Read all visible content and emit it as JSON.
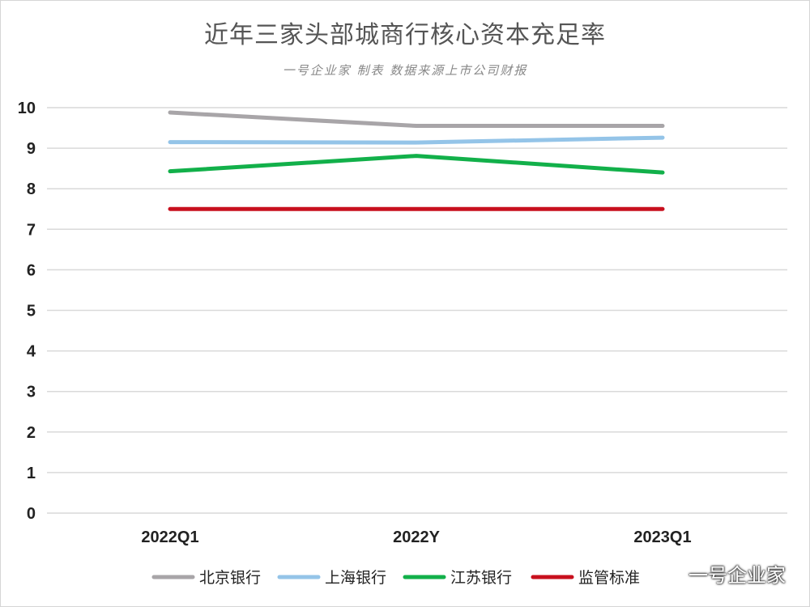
{
  "chart_data": {
    "type": "line",
    "title": "近年三家头部城商行核心资本充足率",
    "subtitle": "一号企业家 制表 数据来源上市公司财报",
    "categories": [
      "2022Q1",
      "2022Y",
      "2023Q1"
    ],
    "y_ticks": [
      "0",
      "1",
      "2",
      "3",
      "4",
      "5",
      "6",
      "7",
      "8",
      "9",
      "10"
    ],
    "ylim": [
      0,
      10
    ],
    "grid": true,
    "legend_position": "bottom",
    "series": [
      {
        "name": "北京银行",
        "color": "#a8a5a8",
        "values": [
          9.88,
          9.55,
          9.55
        ]
      },
      {
        "name": "上海银行",
        "color": "#94c4e8",
        "values": [
          9.15,
          9.14,
          9.26
        ]
      },
      {
        "name": "江苏银行",
        "color": "#12b04a",
        "values": [
          8.43,
          8.81,
          8.4
        ]
      },
      {
        "name": "监管标准",
        "color": "#c8101e",
        "values": [
          7.5,
          7.5,
          7.5
        ]
      }
    ]
  },
  "watermark": {
    "icon": "wechat-icon",
    "text": "一号企业家"
  }
}
